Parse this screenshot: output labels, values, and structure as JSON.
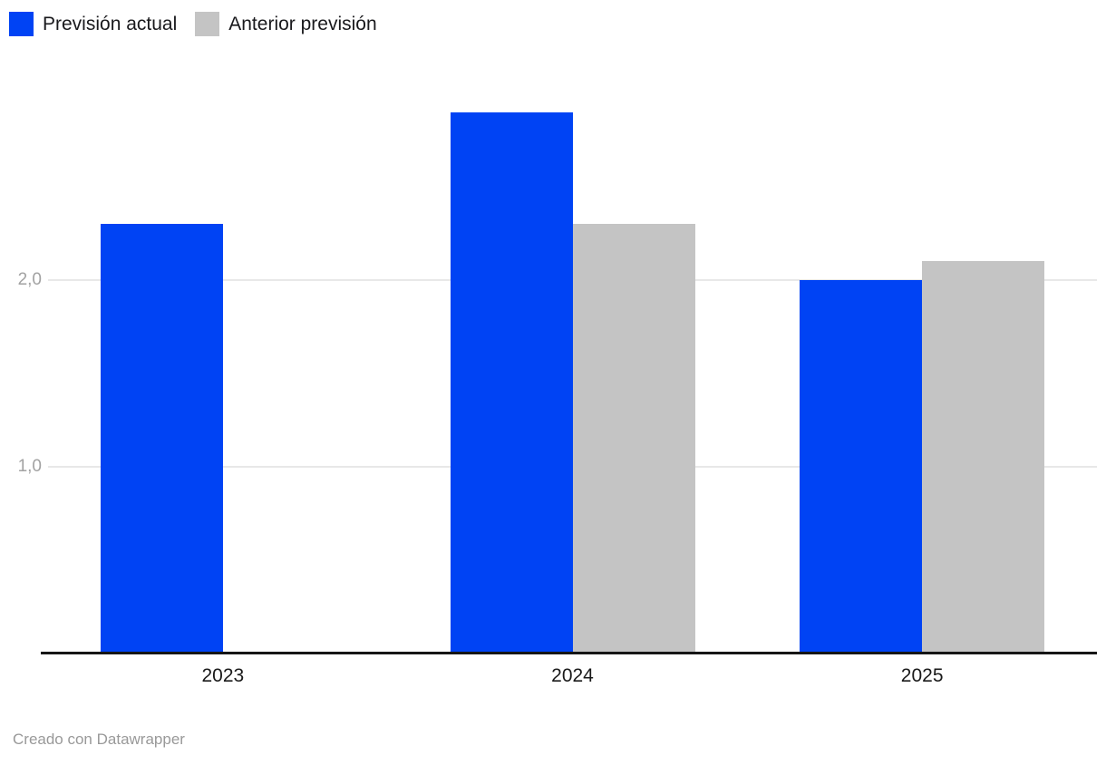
{
  "chart_data": {
    "type": "bar",
    "title": "",
    "xlabel": "",
    "ylabel": "",
    "categories": [
      "2023",
      "2024",
      "2025"
    ],
    "series": [
      {
        "name": "Previsión actual",
        "color": "#0043f4",
        "values": [
          2.3,
          2.9,
          2.0
        ]
      },
      {
        "name": "Anterior previsión",
        "color": "#c4c4c4",
        "values": [
          null,
          2.3,
          2.1
        ]
      }
    ],
    "y_gridlines": [
      {
        "value": 1,
        "label": "1,0"
      },
      {
        "value": 2,
        "label": "2,0"
      }
    ],
    "ylim": [
      0,
      3.2
    ],
    "grid": true,
    "legend_position": "top-left",
    "number_format": "decimal-comma"
  },
  "footer": {
    "credit": "Creado con Datawrapper"
  },
  "colors": {
    "background": "#ffffff",
    "axis_line": "#161616",
    "gridline": "#e8e8e8",
    "tick_label": "#a2a2a2",
    "category_label": "#1a1a1a",
    "legend_text": "#19191c",
    "credit_text": "#999999"
  }
}
